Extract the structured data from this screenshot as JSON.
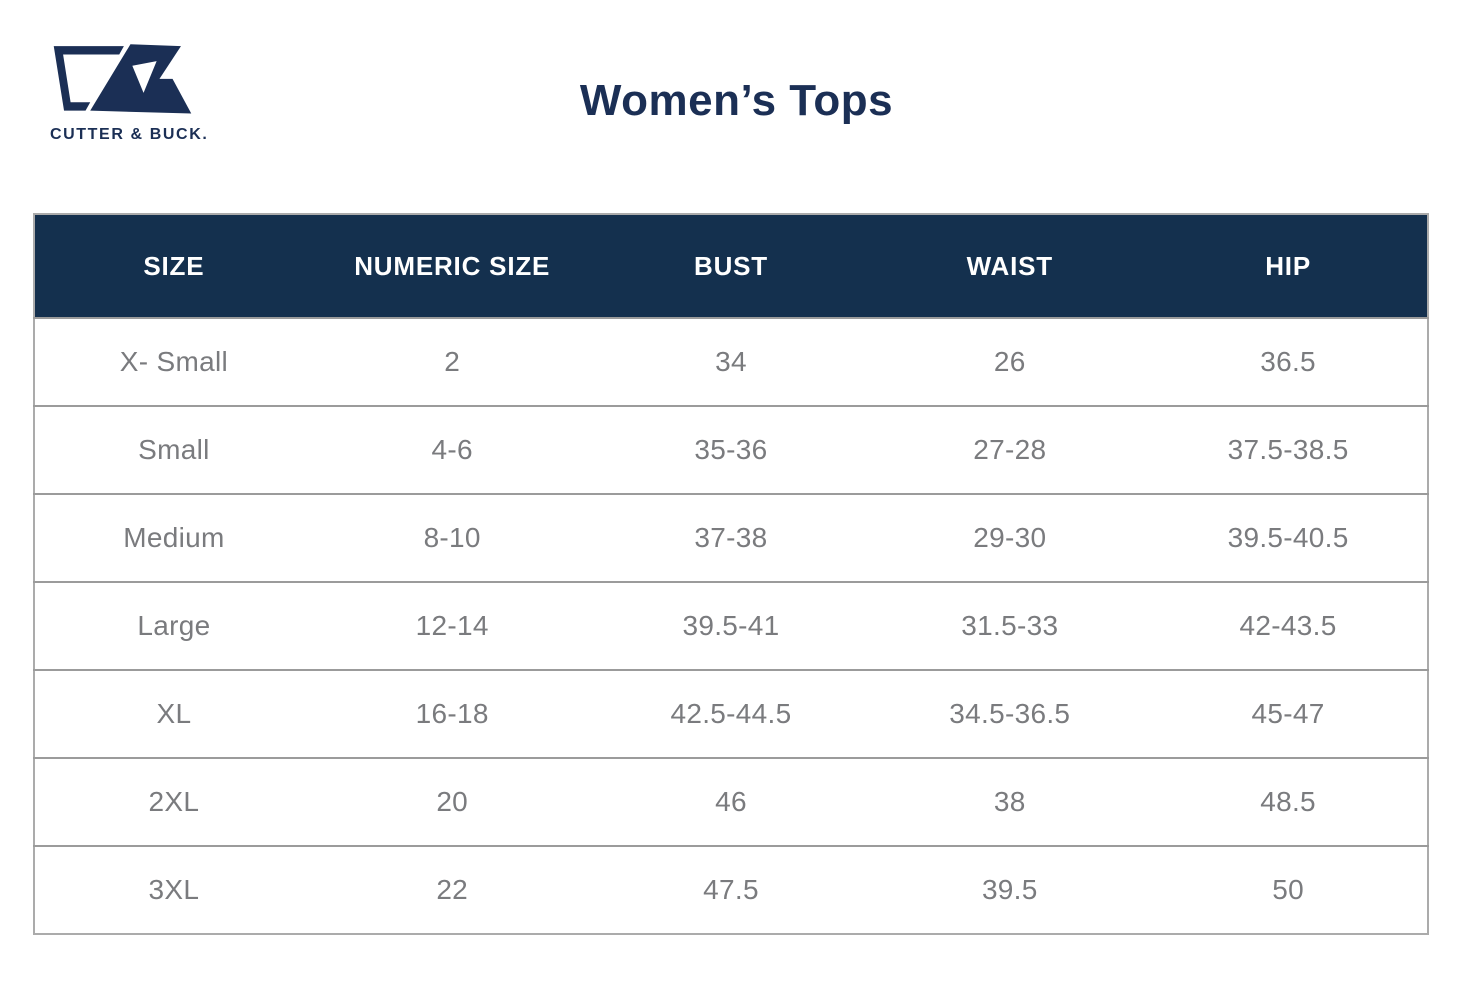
{
  "colors": {
    "brand-navy": "#1b2f55",
    "header-navy": "#14304e",
    "text-gray": "#7a7b7e",
    "divider": "#9b9b9b",
    "outer-border": "#ababab"
  },
  "brand": {
    "wordmark": "CUTTER & BUCK.",
    "monogram_icon": "cutter-and-buck-cb-monogram"
  },
  "page": {
    "title": "Women’s Tops"
  },
  "table": {
    "headers": [
      "SIZE",
      "NUMERIC SIZE",
      "BUST",
      "WAIST",
      "HIP"
    ],
    "rows": [
      [
        "X- Small",
        "2",
        "34",
        "26",
        "36.5"
      ],
      [
        "Small",
        "4-6",
        "35-36",
        "27-28",
        "37.5-38.5"
      ],
      [
        "Medium",
        "8-10",
        "37-38",
        "29-30",
        "39.5-40.5"
      ],
      [
        "Large",
        "12-14",
        "39.5-41",
        "31.5-33",
        "42-43.5"
      ],
      [
        "XL",
        "16-18",
        "42.5-44.5",
        "34.5-36.5",
        "45-47"
      ],
      [
        "2XL",
        "20",
        "46",
        "38",
        "48.5"
      ],
      [
        "3XL",
        "22",
        "47.5",
        "39.5",
        "50"
      ]
    ]
  }
}
